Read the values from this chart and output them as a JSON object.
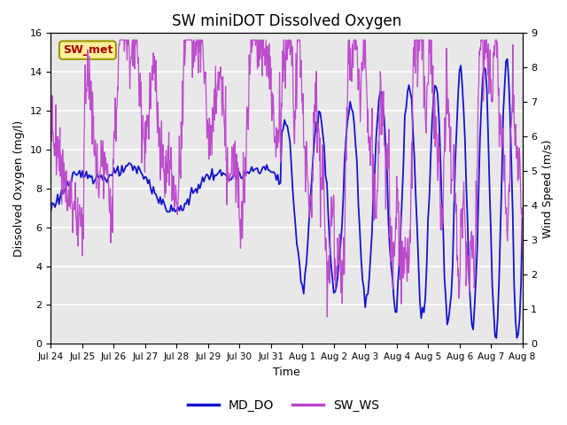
{
  "title": "SW miniDOT Dissolved Oxygen",
  "xlabel": "Time",
  "ylabel_left": "Dissolved Oxygen (mg/l)",
  "ylabel_right": "Wind Speed (m/s)",
  "ylim_left": [
    0,
    16
  ],
  "ylim_right": [
    0.0,
    9.0
  ],
  "yticks_left": [
    0,
    2,
    4,
    6,
    8,
    10,
    12,
    14,
    16
  ],
  "yticks_right": [
    0.0,
    1.0,
    2.0,
    3.0,
    4.0,
    5.0,
    6.0,
    7.0,
    8.0,
    9.0
  ],
  "color_do": "#1414cc",
  "color_ws": "#bb44cc",
  "legend_labels": [
    "MD_DO",
    "SW_WS"
  ],
  "annotation_text": "SW_met",
  "annotation_color": "#aa0000",
  "annotation_bg": "#ffee99",
  "annotation_edge": "#999900",
  "background_color": "#e8e8e8",
  "grid_color": "#ffffff",
  "xtick_labels": [
    "Jul 24",
    "Jul 25",
    "Jul 26",
    "Jul 27",
    "Jul 28",
    "Jul 29",
    "Jul 30",
    "Jul 31",
    "Aug 1",
    "Aug 2",
    "Aug 3",
    "Aug 4",
    "Aug 5",
    "Aug 6",
    "Aug 7",
    "Aug 8"
  ]
}
